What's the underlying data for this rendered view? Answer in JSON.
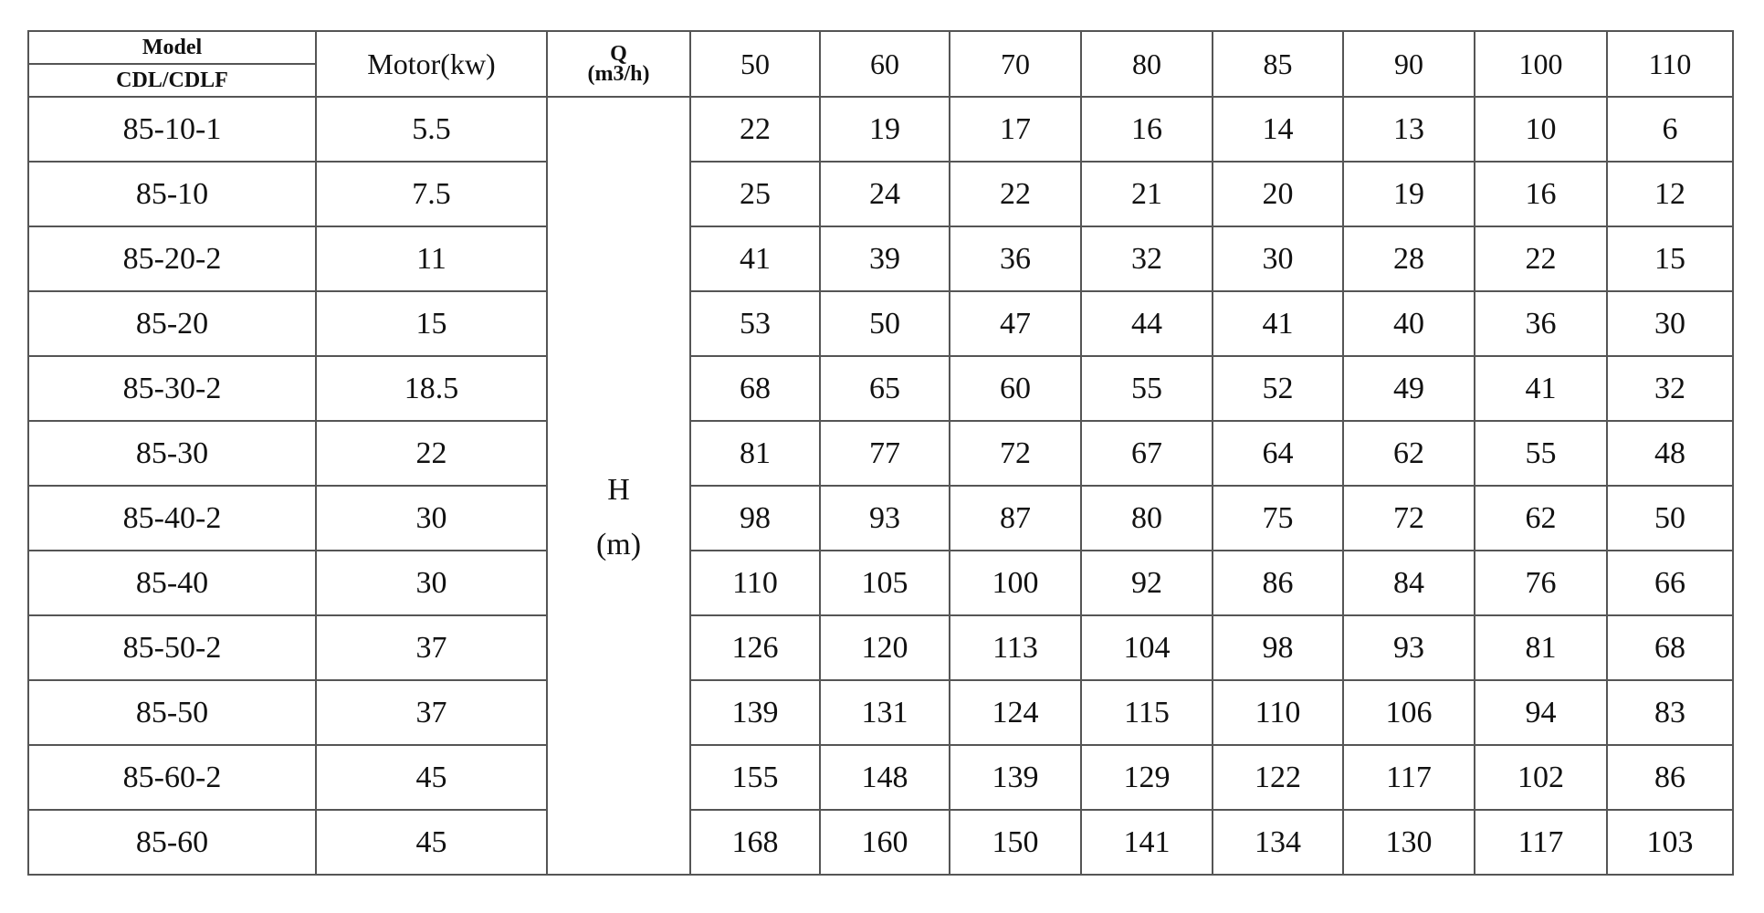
{
  "header": {
    "model_line1": "Model",
    "model_line2": "CDL/CDLF",
    "motor": "Motor(kw)",
    "q_line1": "Q",
    "q_line2": "(m3/h)",
    "flows": [
      "50",
      "60",
      "70",
      "80",
      "85",
      "90",
      "100",
      "110"
    ]
  },
  "h_label": {
    "line1": "H",
    "line2": "(m)"
  },
  "rows": [
    {
      "model": "85-10-1",
      "motor": "5.5",
      "heads": [
        "22",
        "19",
        "17",
        "16",
        "14",
        "13",
        "10",
        "6"
      ]
    },
    {
      "model": "85-10",
      "motor": "7.5",
      "heads": [
        "25",
        "24",
        "22",
        "21",
        "20",
        "19",
        "16",
        "12"
      ]
    },
    {
      "model": "85-20-2",
      "motor": "11",
      "heads": [
        "41",
        "39",
        "36",
        "32",
        "30",
        "28",
        "22",
        "15"
      ]
    },
    {
      "model": "85-20",
      "motor": "15",
      "heads": [
        "53",
        "50",
        "47",
        "44",
        "41",
        "40",
        "36",
        "30"
      ]
    },
    {
      "model": "85-30-2",
      "motor": "18.5",
      "heads": [
        "68",
        "65",
        "60",
        "55",
        "52",
        "49",
        "41",
        "32"
      ]
    },
    {
      "model": "85-30",
      "motor": "22",
      "heads": [
        "81",
        "77",
        "72",
        "67",
        "64",
        "62",
        "55",
        "48"
      ]
    },
    {
      "model": "85-40-2",
      "motor": "30",
      "heads": [
        "98",
        "93",
        "87",
        "80",
        "75",
        "72",
        "62",
        "50"
      ]
    },
    {
      "model": "85-40",
      "motor": "30",
      "heads": [
        "110",
        "105",
        "100",
        "92",
        "86",
        "84",
        "76",
        "66"
      ]
    },
    {
      "model": "85-50-2",
      "motor": "37",
      "heads": [
        "126",
        "120",
        "113",
        "104",
        "98",
        "93",
        "81",
        "68"
      ]
    },
    {
      "model": "85-50",
      "motor": "37",
      "heads": [
        "139",
        "131",
        "124",
        "115",
        "110",
        "106",
        "94",
        "83"
      ]
    },
    {
      "model": "85-60-2",
      "motor": "45",
      "heads": [
        "155",
        "148",
        "139",
        "129",
        "122",
        "117",
        "102",
        "86"
      ]
    },
    {
      "model": "85-60",
      "motor": "45",
      "heads": [
        "168",
        "160",
        "150",
        "141",
        "134",
        "130",
        "117",
        "103"
      ]
    }
  ]
}
